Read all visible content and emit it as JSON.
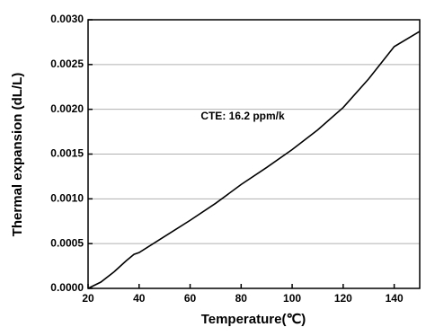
{
  "chart_data": {
    "type": "line",
    "xlabel": "Temperature(℃)",
    "ylabel": "Thermal expansion (dL/L)",
    "annotation": "CTE: 16.2 ppm/k",
    "x": [
      20,
      25,
      30,
      35,
      38,
      40,
      50,
      60,
      70,
      80,
      90,
      100,
      110,
      120,
      130,
      140,
      150
    ],
    "series": [
      {
        "color": "#000000",
        "values": [
          0,
          7e-05,
          0.00018,
          0.00031,
          0.00038,
          0.0004,
          0.00058,
          0.00076,
          0.00095,
          0.00116,
          0.00135,
          0.00155,
          0.00177,
          0.00202,
          0.00234,
          0.0027,
          0.00287
        ]
      }
    ],
    "xlim": [
      20,
      150
    ],
    "xticks": [
      20,
      40,
      60,
      80,
      100,
      120,
      140
    ],
    "ylim": [
      0,
      0.003
    ],
    "yticks": [
      {
        "value": 0,
        "label": "0.0000"
      },
      {
        "value": 0.0005,
        "label": "0.0005"
      },
      {
        "value": 0.001,
        "label": "0.0010"
      },
      {
        "value": 0.0015,
        "label": "0.0015"
      },
      {
        "value": 0.002,
        "label": "0.0020"
      },
      {
        "value": 0.0025,
        "label": "0.0025"
      },
      {
        "value": 0.003,
        "label": "0.0030"
      }
    ],
    "grid": true
  }
}
